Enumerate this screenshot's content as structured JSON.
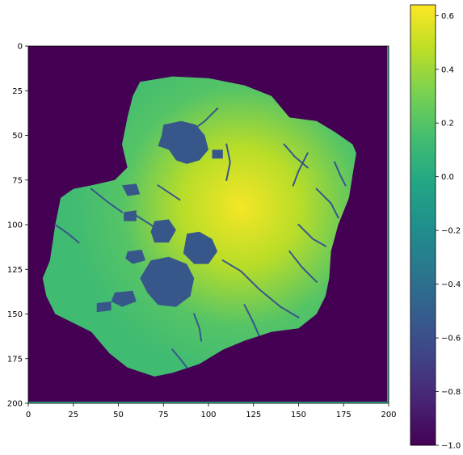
{
  "chart_data": {
    "type": "heatmap",
    "title": "",
    "xlabel": "",
    "ylabel": "",
    "xlim": [
      0,
      200
    ],
    "ylim": [
      200,
      0
    ],
    "x_ticks": [
      "0",
      "25",
      "50",
      "75",
      "100",
      "125",
      "150",
      "175",
      "200"
    ],
    "y_ticks": [
      "0",
      "25",
      "50",
      "75",
      "100",
      "125",
      "150",
      "175",
      "200"
    ],
    "colormap": "viridis",
    "colorbar": {
      "range": [
        -1.0,
        0.64
      ],
      "ticks": [
        "0.6",
        "0.4",
        "0.2",
        "0.0",
        "−0.2",
        "−0.4",
        "−0.6",
        "−0.8",
        "−1.0"
      ]
    },
    "background_value": -1.0,
    "lake_value": -0.55,
    "river_value": -0.55,
    "peak_value": 0.62,
    "coast_value": 0.15,
    "island_outline_xy": [
      [
        62,
        20
      ],
      [
        80,
        17
      ],
      [
        100,
        18
      ],
      [
        120,
        22
      ],
      [
        135,
        28
      ],
      [
        145,
        40
      ],
      [
        160,
        42
      ],
      [
        170,
        48
      ],
      [
        180,
        55
      ],
      [
        182,
        60
      ],
      [
        180,
        72
      ],
      [
        178,
        85
      ],
      [
        172,
        100
      ],
      [
        168,
        115
      ],
      [
        167,
        130
      ],
      [
        165,
        140
      ],
      [
        160,
        150
      ],
      [
        150,
        158
      ],
      [
        135,
        160
      ],
      [
        120,
        165
      ],
      [
        108,
        170
      ],
      [
        95,
        178
      ],
      [
        80,
        183
      ],
      [
        70,
        185
      ],
      [
        55,
        180
      ],
      [
        45,
        172
      ],
      [
        35,
        160
      ],
      [
        25,
        155
      ],
      [
        15,
        150
      ],
      [
        10,
        140
      ],
      [
        8,
        130
      ],
      [
        12,
        120
      ],
      [
        15,
        100
      ],
      [
        18,
        85
      ],
      [
        25,
        80
      ],
      [
        35,
        78
      ],
      [
        48,
        75
      ],
      [
        55,
        68
      ],
      [
        52,
        55
      ],
      [
        55,
        40
      ],
      [
        58,
        28
      ]
    ],
    "peak_xy": [
      118,
      90
    ],
    "lakes_xy": [
      [
        [
          75,
          44
        ],
        [
          85,
          42
        ],
        [
          93,
          44
        ],
        [
          98,
          50
        ],
        [
          100,
          58
        ],
        [
          95,
          64
        ],
        [
          88,
          66
        ],
        [
          82,
          64
        ],
        [
          78,
          58
        ],
        [
          72,
          56
        ],
        [
          74,
          50
        ]
      ],
      [
        [
          68,
          120
        ],
        [
          78,
          118
        ],
        [
          88,
          122
        ],
        [
          92,
          130
        ],
        [
          90,
          140
        ],
        [
          82,
          146
        ],
        [
          72,
          145
        ],
        [
          66,
          138
        ],
        [
          62,
          130
        ]
      ],
      [
        [
          88,
          105
        ],
        [
          95,
          104
        ],
        [
          102,
          108
        ],
        [
          105,
          115
        ],
        [
          100,
          122
        ],
        [
          92,
          122
        ],
        [
          86,
          116
        ]
      ],
      [
        [
          70,
          98
        ],
        [
          78,
          97
        ],
        [
          82,
          103
        ],
        [
          78,
          110
        ],
        [
          70,
          110
        ],
        [
          68,
          104
        ]
      ],
      [
        [
          48,
          138
        ],
        [
          58,
          137
        ],
        [
          60,
          143
        ],
        [
          52,
          146
        ],
        [
          46,
          143
        ]
      ],
      [
        [
          55,
          115
        ],
        [
          63,
          114
        ],
        [
          65,
          120
        ],
        [
          58,
          122
        ],
        [
          54,
          119
        ]
      ],
      [
        [
          38,
          144
        ],
        [
          46,
          143
        ],
        [
          46,
          148
        ],
        [
          38,
          149
        ]
      ],
      [
        [
          52,
          78
        ],
        [
          60,
          77
        ],
        [
          62,
          83
        ],
        [
          55,
          84
        ]
      ],
      [
        [
          53,
          93
        ],
        [
          60,
          92
        ],
        [
          60,
          98
        ],
        [
          53,
          98
        ]
      ],
      [
        [
          102,
          58
        ],
        [
          108,
          58
        ],
        [
          108,
          63
        ],
        [
          102,
          63
        ]
      ]
    ],
    "rivers_xy": [
      [
        [
          108,
          120
        ],
        [
          118,
          126
        ],
        [
          128,
          136
        ],
        [
          140,
          146
        ],
        [
          150,
          152
        ]
      ],
      [
        [
          105,
          35
        ],
        [
          98,
          42
        ],
        [
          90,
          48
        ]
      ],
      [
        [
          160,
          80
        ],
        [
          168,
          88
        ],
        [
          172,
          96
        ]
      ],
      [
        [
          155,
          60
        ],
        [
          150,
          70
        ],
        [
          147,
          78
        ]
      ],
      [
        [
          142,
          55
        ],
        [
          148,
          62
        ],
        [
          155,
          68
        ]
      ],
      [
        [
          170,
          65
        ],
        [
          173,
          72
        ],
        [
          176,
          78
        ]
      ],
      [
        [
          145,
          115
        ],
        [
          152,
          124
        ],
        [
          160,
          132
        ]
      ],
      [
        [
          150,
          100
        ],
        [
          158,
          108
        ],
        [
          165,
          112
        ]
      ],
      [
        [
          110,
          55
        ],
        [
          112,
          65
        ],
        [
          110,
          75
        ]
      ],
      [
        [
          60,
          95
        ],
        [
          68,
          100
        ],
        [
          75,
          106
        ]
      ],
      [
        [
          35,
          80
        ],
        [
          45,
          88
        ],
        [
          52,
          93
        ]
      ],
      [
        [
          15,
          100
        ],
        [
          22,
          105
        ],
        [
          28,
          110
        ]
      ],
      [
        [
          120,
          145
        ],
        [
          125,
          155
        ],
        [
          128,
          162
        ]
      ],
      [
        [
          80,
          170
        ],
        [
          85,
          176
        ],
        [
          88,
          180
        ]
      ],
      [
        [
          72,
          78
        ],
        [
          78,
          82
        ],
        [
          84,
          86
        ]
      ],
      [
        [
          92,
          150
        ],
        [
          95,
          158
        ],
        [
          96,
          165
        ]
      ]
    ]
  }
}
